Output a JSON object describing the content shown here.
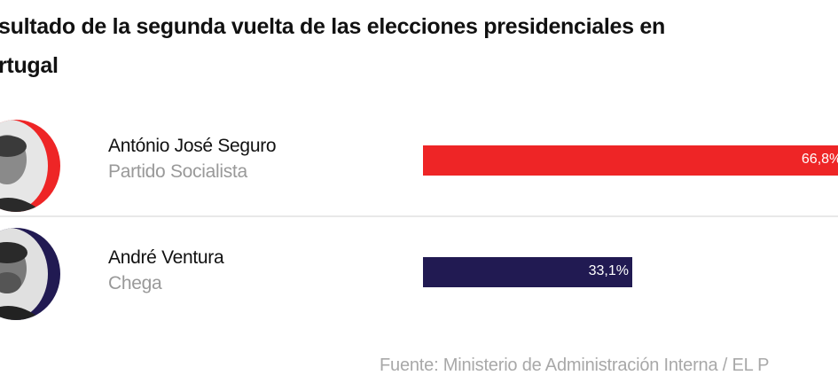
{
  "title_lines": [
    "sultado de la segunda vuelta de las elecciones presidenciales en",
    "rtugal"
  ],
  "source": "Fuente: Ministerio de Administración Interna / EL P",
  "chart_data": {
    "type": "bar",
    "orientation": "horizontal",
    "categories": [
      "António José Seguro",
      "André Ventura"
    ],
    "parties": [
      "Partido Socialista",
      "Chega"
    ],
    "values": [
      66.8,
      33.1
    ],
    "value_labels": [
      "66,8%",
      "33,1%"
    ],
    "colors": [
      "#ee2526",
      "#211a52"
    ],
    "unit": "%",
    "xlim": [
      0,
      100
    ]
  }
}
